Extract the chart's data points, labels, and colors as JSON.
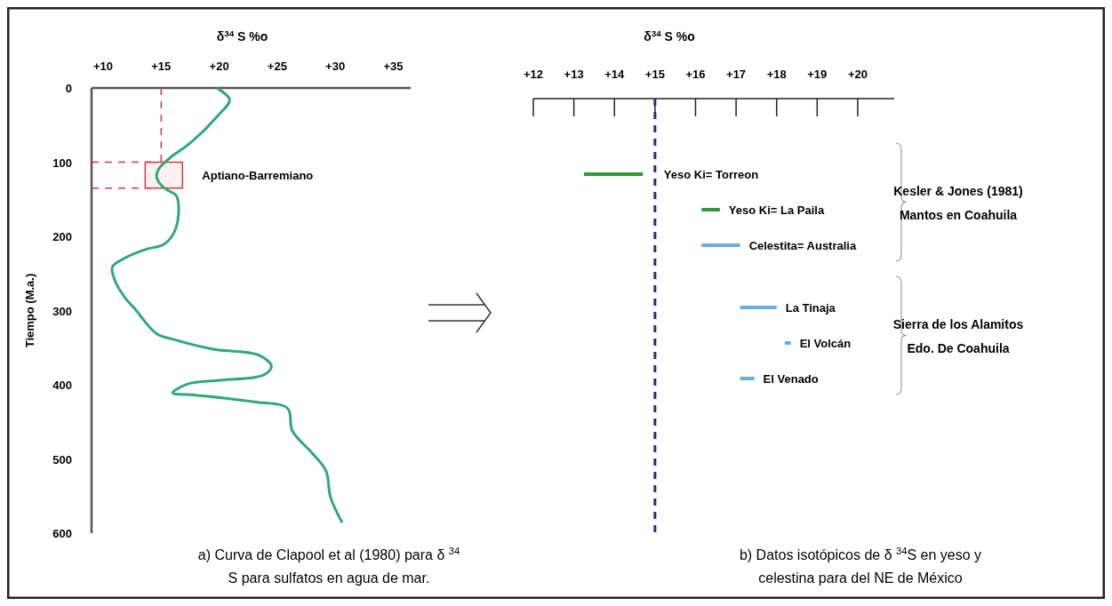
{
  "chart_data": [
    {
      "type": "line",
      "xlabel": "δ$^{34}$ S %o",
      "ylabel": "Tiempo (M.a.)",
      "xlim": [
        9,
        36.5
      ],
      "xticks": [
        {
          "value": 10,
          "label": "+10"
        },
        {
          "value": 15,
          "label": "+15"
        },
        {
          "value": 20,
          "label": "+20"
        },
        {
          "value": 25,
          "label": "+25"
        },
        {
          "value": 30,
          "label": "+30"
        },
        {
          "value": 35,
          "label": "+35"
        }
      ],
      "ylim": [
        600,
        0
      ],
      "yticks": [
        0,
        100,
        200,
        300,
        400,
        500,
        600
      ],
      "series": [
        {
          "color": "#2fa87a",
          "x": [
            19.8,
            20.9,
            19.9,
            17.6,
            15.7,
            14.8,
            14.6,
            15.0,
            15.7,
            16.3,
            16.5,
            16.1,
            15.2,
            13.8,
            11.9,
            10.8,
            11.0,
            11.9,
            12.7,
            14.6,
            16.1,
            19.5,
            23.4,
            24.5,
            23.8,
            20.0,
            17.3,
            16.0,
            18.0,
            23.0,
            25.9,
            26.3,
            28.0,
            29.2,
            29.6,
            30.6
          ],
          "values": [
            0,
            16,
            37,
            73,
            95,
            109,
            119,
            131,
            139,
            145,
            169,
            195,
            211,
            217,
            229,
            241,
            259,
            283,
            297,
            331,
            339,
            352,
            360,
            375,
            387,
            394,
            399,
            411,
            414,
            423,
            432,
            462,
            492,
            516,
            552,
            586
          ]
        }
      ],
      "ref_lines": [
        {
          "axis": "x",
          "value": 15,
          "color": "#d93a3a",
          "line_style": "dashed"
        },
        {
          "axis": "y",
          "value": 100,
          "color": "#d93a3a",
          "line_style": "dashed"
        },
        {
          "axis": "y",
          "value": 135,
          "color": "#d93a3a",
          "line_style": "dashed"
        }
      ],
      "bands": [
        {
          "axis": "y",
          "from": 100,
          "to": 135,
          "label": "Aptiano-Barremiano",
          "color": "#d93a3a"
        }
      ],
      "annotations": [
        "a) Curva de Clapool et al (1980) para δ $^{34}$ S para sulfatos en agua de mar."
      ]
    },
    {
      "type": "bar",
      "orientation": "horizontal",
      "xlabel": "δ$^{34}$ S %o",
      "xlim": [
        12,
        20.9
      ],
      "xticks": [
        {
          "value": 12,
          "label": "+12"
        },
        {
          "value": 13,
          "label": "+13"
        },
        {
          "value": 14,
          "label": "+14"
        },
        {
          "value": 15,
          "label": "+15"
        },
        {
          "value": 16,
          "label": "+16"
        },
        {
          "value": 17,
          "label": "+17"
        },
        {
          "value": 18,
          "label": "+18"
        },
        {
          "value": 19,
          "label": "+19"
        },
        {
          "value": 20,
          "label": "+20"
        }
      ],
      "categories": [
        "Yeso Ki= Torreon",
        "Yeso Ki= La Paila",
        "Celestita= Australia",
        "La Tinaja",
        "El Volcán",
        "El Venado"
      ],
      "base": [
        13.25,
        16.15,
        16.15,
        17.1,
        18.2,
        17.1
      ],
      "values": [
        1.45,
        0.45,
        0.95,
        0.9,
        0.15,
        0.35
      ],
      "colors": [
        "#2a9a3a",
        "#2a9a3a",
        "#6aaee0",
        "#6aaee0",
        "#6aaee0",
        "#6aaee0"
      ],
      "ref_lines": [
        {
          "axis": "x",
          "value": 15,
          "color": "#2b2b80",
          "line_style": "dashed"
        }
      ],
      "annotations": [
        "Kesler & Jones (1981) Mantos en Coahuila",
        "Sierra de los Alamitos Edo. De Coahuila",
        "b) Datos isotópicos de δ $^{34}$S en yeso y celestina para del NE de México"
      ]
    }
  ]
}
